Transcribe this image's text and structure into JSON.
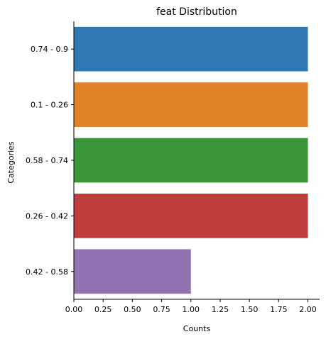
{
  "chart_data": {
    "type": "bar",
    "orientation": "horizontal",
    "title": "feat Distribution",
    "xlabel": "Counts",
    "ylabel": "Categories",
    "categories": [
      "0.74 - 0.9",
      "0.1 - 0.26",
      "0.58 - 0.74",
      "0.26 - 0.42",
      "0.42 - 0.58"
    ],
    "values": [
      2,
      2,
      2,
      2,
      1
    ],
    "colors": [
      "#2f78b3",
      "#e1822b",
      "#3a9538",
      "#c03c3d",
      "#9372b1"
    ],
    "xlim": [
      0,
      2.1
    ],
    "xticks": [
      0.0,
      0.25,
      0.5,
      0.75,
      1.0,
      1.25,
      1.5,
      1.75,
      2.0
    ],
    "xtick_labels": [
      "0.00",
      "0.25",
      "0.50",
      "0.75",
      "1.00",
      "1.25",
      "1.50",
      "1.75",
      "2.00"
    ],
    "grid": false,
    "legend": "none"
  }
}
